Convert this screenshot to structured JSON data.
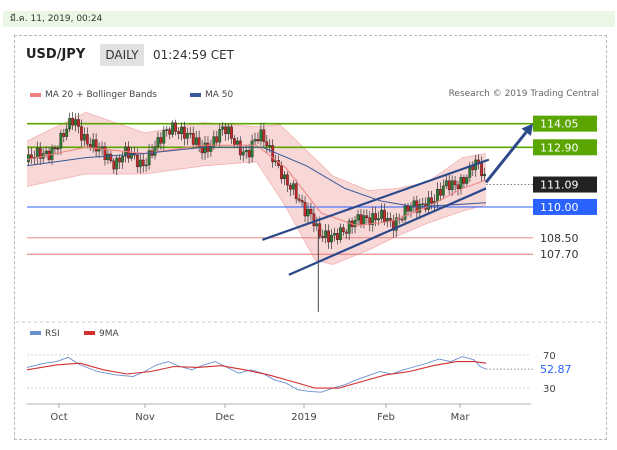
{
  "date_bar": "มี.ค. 11, 2019, 00:24",
  "header": {
    "pair": "USD/JPY",
    "timeframe": "DAILY",
    "time": "01:24:59 CET"
  },
  "legend": {
    "ma20": {
      "label": "MA 20 + Bollinger Bands",
      "color": "#f08080"
    },
    "ma50": {
      "label": "MA 50",
      "color": "#3b5998"
    }
  },
  "credit": "Research © 2019 Trading Central",
  "colors": {
    "up": "#2e7d32",
    "down": "#c62828",
    "resistance": "#5aa500",
    "support_blue": "#2962ff",
    "support_red": "#e57373",
    "channel": "#2c4a8a",
    "last": "#222222"
  },
  "chart_data": [
    {
      "type": "candlestick",
      "x_ticks": [
        "Oct",
        "Nov",
        "Dec",
        "2019",
        "Feb",
        "Mar"
      ],
      "ylim": [
        104.6,
        115.2
      ],
      "levels": [
        {
          "value": 114.05,
          "label": "114.05",
          "kind": "resistance"
        },
        {
          "value": 112.9,
          "label": "112.90",
          "kind": "resistance"
        },
        {
          "value": 111.09,
          "label": "111.09",
          "kind": "last"
        },
        {
          "value": 110.0,
          "label": "110.00",
          "kind": "support_blue"
        },
        {
          "value": 108.5,
          "label": "108.50",
          "kind": "support_red"
        },
        {
          "value": 107.7,
          "label": "107.70",
          "kind": "support_red"
        }
      ],
      "close_path": [
        [
          0,
          112.2
        ],
        [
          3,
          112.4
        ],
        [
          6,
          112.6
        ],
        [
          9,
          112.9
        ],
        [
          12,
          113.3
        ],
        [
          14,
          113.8
        ],
        [
          16,
          114.3
        ],
        [
          18,
          113.8
        ],
        [
          21,
          113.1
        ],
        [
          24,
          112.7
        ],
        [
          27,
          112.5
        ],
        [
          30,
          112.2
        ],
        [
          33,
          112.6
        ],
        [
          36,
          112.3
        ],
        [
          39,
          112.1
        ],
        [
          42,
          112.7
        ],
        [
          45,
          113.1
        ],
        [
          48,
          113.7
        ],
        [
          50,
          114.0
        ],
        [
          53,
          113.7
        ],
        [
          56,
          113.2
        ],
        [
          59,
          112.8
        ],
        [
          62,
          113.1
        ],
        [
          65,
          113.5
        ],
        [
          67,
          113.7
        ],
        [
          70,
          113.3
        ],
        [
          72,
          113.0
        ],
        [
          75,
          112.6
        ],
        [
          78,
          113.2
        ],
        [
          80,
          113.4
        ],
        [
          83,
          112.8
        ],
        [
          86,
          111.8
        ],
        [
          88,
          111.0
        ],
        [
          91,
          110.7
        ],
        [
          94,
          110.1
        ],
        [
          97,
          109.6
        ],
        [
          98,
          108.9
        ],
        [
          100,
          108.4
        ],
        [
          103,
          108.6
        ],
        [
          106,
          108.9
        ],
        [
          109,
          108.8
        ],
        [
          112,
          109.3
        ],
        [
          115,
          109.6
        ],
        [
          118,
          109.5
        ],
        [
          121,
          109.4
        ],
        [
          124,
          109.1
        ],
        [
          127,
          109.7
        ],
        [
          130,
          110.0
        ],
        [
          133,
          109.8
        ],
        [
          136,
          110.3
        ],
        [
          139,
          110.6
        ],
        [
          142,
          110.9
        ],
        [
          145,
          111.0
        ],
        [
          148,
          111.4
        ],
        [
          150,
          111.7
        ],
        [
          152,
          112.1
        ],
        [
          154,
          111.8
        ],
        [
          156,
          111.1
        ]
      ],
      "spike": {
        "x": 99,
        "low": 104.9,
        "high": 108.9
      },
      "ma20_path": [
        [
          0,
          112.3
        ],
        [
          20,
          112.9
        ],
        [
          40,
          112.6
        ],
        [
          60,
          113.0
        ],
        [
          78,
          113.0
        ],
        [
          88,
          111.9
        ],
        [
          100,
          109.7
        ],
        [
          112,
          109.1
        ],
        [
          124,
          109.3
        ],
        [
          136,
          110.0
        ],
        [
          148,
          110.9
        ],
        [
          156,
          111.3
        ]
      ],
      "ma50_path": [
        [
          0,
          112.0
        ],
        [
          20,
          112.4
        ],
        [
          40,
          112.6
        ],
        [
          60,
          112.9
        ],
        [
          80,
          112.9
        ],
        [
          95,
          112.0
        ],
        [
          108,
          110.9
        ],
        [
          120,
          110.3
        ],
        [
          132,
          110.0
        ],
        [
          144,
          110.1
        ],
        [
          156,
          110.2
        ]
      ],
      "bb_upper": [
        [
          0,
          113.2
        ],
        [
          20,
          114.6
        ],
        [
          40,
          113.6
        ],
        [
          60,
          114.1
        ],
        [
          78,
          113.9
        ],
        [
          86,
          114.0
        ],
        [
          96,
          112.6
        ],
        [
          104,
          111.5
        ],
        [
          116,
          110.8
        ],
        [
          126,
          110.9
        ],
        [
          136,
          111.2
        ],
        [
          148,
          112.4
        ],
        [
          156,
          112.6
        ]
      ],
      "bb_lower": [
        [
          0,
          111.0
        ],
        [
          20,
          111.6
        ],
        [
          40,
          111.6
        ],
        [
          60,
          112.0
        ],
        [
          78,
          112.2
        ],
        [
          88,
          110.0
        ],
        [
          98,
          107.4
        ],
        [
          104,
          107.2
        ],
        [
          116,
          107.9
        ],
        [
          126,
          108.6
        ],
        [
          136,
          109.2
        ],
        [
          148,
          109.8
        ],
        [
          156,
          110.1
        ]
      ],
      "channel": [
        {
          "from": [
            80,
            108.4
          ],
          "to": [
            157,
            112.3
          ]
        },
        {
          "from": [
            89,
            106.7
          ],
          "to": [
            156,
            110.9
          ]
        }
      ],
      "projection": {
        "from": [
          156,
          111.2
        ],
        "to": [
          172,
          114.05
        ]
      }
    },
    {
      "type": "line",
      "legend": [
        {
          "name": "RSI",
          "color": "#6a8fd0"
        },
        {
          "name": "9MA",
          "color": "#d32f2f"
        }
      ],
      "ylim": [
        18,
        82
      ],
      "y_ticks": [
        70,
        30
      ],
      "last_value": "52.87",
      "series": [
        {
          "name": "RSI",
          "path": [
            [
              0,
              55
            ],
            [
              6,
              60
            ],
            [
              10,
              62
            ],
            [
              14,
              67
            ],
            [
              18,
              58
            ],
            [
              24,
              50
            ],
            [
              30,
              46
            ],
            [
              36,
              44
            ],
            [
              40,
              50
            ],
            [
              44,
              58
            ],
            [
              48,
              62
            ],
            [
              52,
              56
            ],
            [
              56,
              52
            ],
            [
              60,
              58
            ],
            [
              64,
              62
            ],
            [
              68,
              55
            ],
            [
              72,
              48
            ],
            [
              76,
              52
            ],
            [
              80,
              48
            ],
            [
              84,
              40
            ],
            [
              88,
              36
            ],
            [
              92,
              28
            ],
            [
              96,
              26
            ],
            [
              100,
              25
            ],
            [
              104,
              30
            ],
            [
              108,
              34
            ],
            [
              112,
              40
            ],
            [
              116,
              45
            ],
            [
              120,
              50
            ],
            [
              124,
              47
            ],
            [
              128,
              52
            ],
            [
              132,
              56
            ],
            [
              136,
              60
            ],
            [
              140,
              65
            ],
            [
              144,
              62
            ],
            [
              148,
              68
            ],
            [
              152,
              64
            ],
            [
              154,
              56
            ],
            [
              156,
              52.87
            ]
          ]
        },
        {
          "name": "9MA",
          "path": [
            [
              0,
              52
            ],
            [
              10,
              58
            ],
            [
              18,
              60
            ],
            [
              26,
              52
            ],
            [
              34,
              47
            ],
            [
              42,
              50
            ],
            [
              50,
              56
            ],
            [
              58,
              55
            ],
            [
              66,
              57
            ],
            [
              74,
              52
            ],
            [
              82,
              46
            ],
            [
              90,
              38
            ],
            [
              98,
              30
            ],
            [
              106,
              30
            ],
            [
              114,
              38
            ],
            [
              122,
              46
            ],
            [
              130,
              50
            ],
            [
              138,
              57
            ],
            [
              146,
              62
            ],
            [
              152,
              62
            ],
            [
              156,
              60
            ]
          ]
        }
      ]
    }
  ]
}
